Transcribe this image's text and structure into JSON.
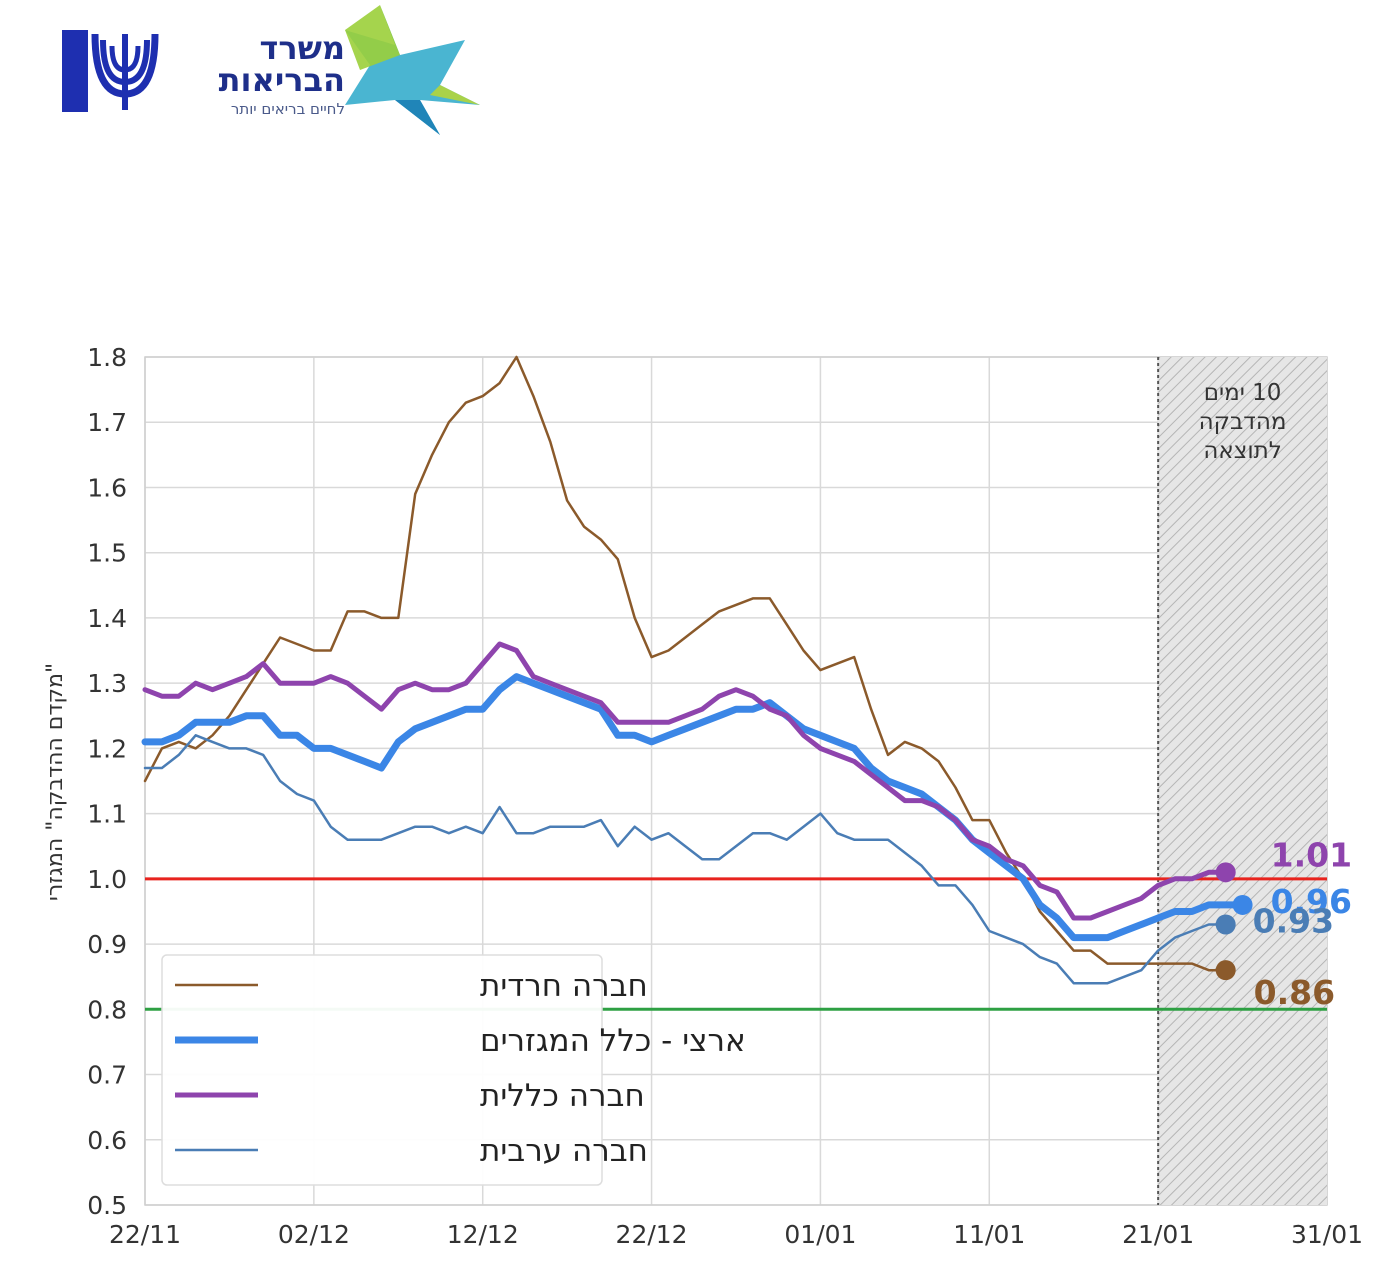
{
  "logo": {
    "ministry_name": "משרד הבריאות",
    "slogan": "לחיים בריאים יותר"
  },
  "chart_data": {
    "type": "line",
    "xlabel": "",
    "ylabel": "\"מקדם ההדבקה\" המגזרי",
    "ylim": [
      0.5,
      1.8
    ],
    "yticks": [
      "0.5",
      "0.6",
      "0.7",
      "0.8",
      "0.9",
      "1.0",
      "1.1",
      "1.2",
      "1.3",
      "1.4",
      "1.5",
      "1.6",
      "1.7",
      "1.8"
    ],
    "xticks": [
      "22/11",
      "02/12",
      "12/12",
      "22/12",
      "01/01",
      "11/01",
      "21/01",
      "31/01"
    ],
    "x_unit": "days from 22/11",
    "grid": true,
    "legend_position": "bottom-left",
    "reference_lines": [
      {
        "y": 1.0,
        "color": "#e8231e"
      },
      {
        "y": 0.8,
        "color": "#2ea043"
      }
    ],
    "shaded_region": {
      "from": "21/01",
      "to": "31/01",
      "annotation": "10 ימים\nמהדבקה\nלתוצאה"
    },
    "series": [
      {
        "name": "חברה חרדית",
        "color": "#8b5a2b",
        "width": 2.5,
        "end_label": "0.86",
        "points": [
          [
            0,
            1.15
          ],
          [
            1,
            1.2
          ],
          [
            2,
            1.21
          ],
          [
            3,
            1.2
          ],
          [
            4,
            1.22
          ],
          [
            5,
            1.25
          ],
          [
            6,
            1.29
          ],
          [
            7,
            1.33
          ],
          [
            8,
            1.37
          ],
          [
            9,
            1.36
          ],
          [
            10,
            1.35
          ],
          [
            11,
            1.35
          ],
          [
            12,
            1.41
          ],
          [
            13,
            1.41
          ],
          [
            14,
            1.4
          ],
          [
            15,
            1.4
          ],
          [
            16,
            1.59
          ],
          [
            17,
            1.65
          ],
          [
            18,
            1.7
          ],
          [
            19,
            1.73
          ],
          [
            20,
            1.74
          ],
          [
            21,
            1.76
          ],
          [
            22,
            1.8
          ],
          [
            23,
            1.74
          ],
          [
            24,
            1.67
          ],
          [
            25,
            1.58
          ],
          [
            26,
            1.54
          ],
          [
            27,
            1.52
          ],
          [
            28,
            1.49
          ],
          [
            29,
            1.4
          ],
          [
            30,
            1.34
          ],
          [
            31,
            1.35
          ],
          [
            32,
            1.37
          ],
          [
            33,
            1.39
          ],
          [
            34,
            1.41
          ],
          [
            35,
            1.42
          ],
          [
            36,
            1.43
          ],
          [
            37,
            1.43
          ],
          [
            38,
            1.39
          ],
          [
            39,
            1.35
          ],
          [
            40,
            1.32
          ],
          [
            41,
            1.33
          ],
          [
            42,
            1.34
          ],
          [
            43,
            1.26
          ],
          [
            44,
            1.19
          ],
          [
            45,
            1.21
          ],
          [
            46,
            1.2
          ],
          [
            47,
            1.18
          ],
          [
            48,
            1.14
          ],
          [
            49,
            1.09
          ],
          [
            50,
            1.09
          ],
          [
            51,
            1.04
          ],
          [
            52,
            1.0
          ],
          [
            53,
            0.95
          ],
          [
            54,
            0.92
          ],
          [
            55,
            0.89
          ],
          [
            56,
            0.89
          ],
          [
            57,
            0.87
          ],
          [
            58,
            0.87
          ],
          [
            59,
            0.87
          ],
          [
            60,
            0.87
          ],
          [
            61,
            0.87
          ],
          [
            62,
            0.87
          ],
          [
            63,
            0.86
          ],
          [
            64,
            0.86
          ]
        ]
      },
      {
        "name": "ארצי - כלל המגזרים",
        "color": "#3b86e6",
        "width": 7,
        "end_label": "0.96",
        "points": [
          [
            0,
            1.21
          ],
          [
            1,
            1.21
          ],
          [
            2,
            1.22
          ],
          [
            3,
            1.24
          ],
          [
            4,
            1.24
          ],
          [
            5,
            1.24
          ],
          [
            6,
            1.25
          ],
          [
            7,
            1.25
          ],
          [
            8,
            1.22
          ],
          [
            9,
            1.22
          ],
          [
            10,
            1.2
          ],
          [
            11,
            1.2
          ],
          [
            12,
            1.19
          ],
          [
            13,
            1.18
          ],
          [
            14,
            1.17
          ],
          [
            15,
            1.21
          ],
          [
            16,
            1.23
          ],
          [
            17,
            1.24
          ],
          [
            18,
            1.25
          ],
          [
            19,
            1.26
          ],
          [
            20,
            1.26
          ],
          [
            21,
            1.29
          ],
          [
            22,
            1.31
          ],
          [
            23,
            1.3
          ],
          [
            24,
            1.29
          ],
          [
            25,
            1.28
          ],
          [
            26,
            1.27
          ],
          [
            27,
            1.26
          ],
          [
            28,
            1.22
          ],
          [
            29,
            1.22
          ],
          [
            30,
            1.21
          ],
          [
            31,
            1.22
          ],
          [
            32,
            1.23
          ],
          [
            33,
            1.24
          ],
          [
            34,
            1.25
          ],
          [
            35,
            1.26
          ],
          [
            36,
            1.26
          ],
          [
            37,
            1.27
          ],
          [
            38,
            1.25
          ],
          [
            39,
            1.23
          ],
          [
            40,
            1.22
          ],
          [
            41,
            1.21
          ],
          [
            42,
            1.2
          ],
          [
            43,
            1.17
          ],
          [
            44,
            1.15
          ],
          [
            45,
            1.14
          ],
          [
            46,
            1.13
          ],
          [
            47,
            1.11
          ],
          [
            48,
            1.09
          ],
          [
            49,
            1.06
          ],
          [
            50,
            1.04
          ],
          [
            51,
            1.02
          ],
          [
            52,
            1.0
          ],
          [
            53,
            0.96
          ],
          [
            54,
            0.94
          ],
          [
            55,
            0.91
          ],
          [
            56,
            0.91
          ],
          [
            57,
            0.91
          ],
          [
            58,
            0.92
          ],
          [
            59,
            0.93
          ],
          [
            60,
            0.94
          ],
          [
            61,
            0.95
          ],
          [
            62,
            0.95
          ],
          [
            63,
            0.96
          ],
          [
            64,
            0.96
          ],
          [
            65,
            0.96
          ]
        ]
      },
      {
        "name": "חברה כללית",
        "color": "#8e44ad",
        "width": 5,
        "end_label": "1.01",
        "points": [
          [
            0,
            1.29
          ],
          [
            1,
            1.28
          ],
          [
            2,
            1.28
          ],
          [
            3,
            1.3
          ],
          [
            4,
            1.29
          ],
          [
            5,
            1.3
          ],
          [
            6,
            1.31
          ],
          [
            7,
            1.33
          ],
          [
            8,
            1.3
          ],
          [
            9,
            1.3
          ],
          [
            10,
            1.3
          ],
          [
            11,
            1.31
          ],
          [
            12,
            1.3
          ],
          [
            13,
            1.28
          ],
          [
            14,
            1.26
          ],
          [
            15,
            1.29
          ],
          [
            16,
            1.3
          ],
          [
            17,
            1.29
          ],
          [
            18,
            1.29
          ],
          [
            19,
            1.3
          ],
          [
            20,
            1.33
          ],
          [
            21,
            1.36
          ],
          [
            22,
            1.35
          ],
          [
            23,
            1.31
          ],
          [
            24,
            1.3
          ],
          [
            25,
            1.29
          ],
          [
            26,
            1.28
          ],
          [
            27,
            1.27
          ],
          [
            28,
            1.24
          ],
          [
            29,
            1.24
          ],
          [
            30,
            1.24
          ],
          [
            31,
            1.24
          ],
          [
            32,
            1.25
          ],
          [
            33,
            1.26
          ],
          [
            34,
            1.28
          ],
          [
            35,
            1.29
          ],
          [
            36,
            1.28
          ],
          [
            37,
            1.26
          ],
          [
            38,
            1.25
          ],
          [
            39,
            1.22
          ],
          [
            40,
            1.2
          ],
          [
            41,
            1.19
          ],
          [
            42,
            1.18
          ],
          [
            43,
            1.16
          ],
          [
            44,
            1.14
          ],
          [
            45,
            1.12
          ],
          [
            46,
            1.12
          ],
          [
            47,
            1.11
          ],
          [
            48,
            1.09
          ],
          [
            49,
            1.06
          ],
          [
            50,
            1.05
          ],
          [
            51,
            1.03
          ],
          [
            52,
            1.02
          ],
          [
            53,
            0.99
          ],
          [
            54,
            0.98
          ],
          [
            55,
            0.94
          ],
          [
            56,
            0.94
          ],
          [
            57,
            0.95
          ],
          [
            58,
            0.96
          ],
          [
            59,
            0.97
          ],
          [
            60,
            0.99
          ],
          [
            61,
            1.0
          ],
          [
            62,
            1.0
          ],
          [
            63,
            1.01
          ],
          [
            64,
            1.01
          ]
        ]
      },
      {
        "name": "חברה ערבית",
        "color": "#4a7db5",
        "width": 2.5,
        "end_label": "0.93",
        "points": [
          [
            0,
            1.17
          ],
          [
            1,
            1.17
          ],
          [
            2,
            1.19
          ],
          [
            3,
            1.22
          ],
          [
            4,
            1.21
          ],
          [
            5,
            1.2
          ],
          [
            6,
            1.2
          ],
          [
            7,
            1.19
          ],
          [
            8,
            1.15
          ],
          [
            9,
            1.13
          ],
          [
            10,
            1.12
          ],
          [
            11,
            1.08
          ],
          [
            12,
            1.06
          ],
          [
            13,
            1.06
          ],
          [
            14,
            1.06
          ],
          [
            15,
            1.07
          ],
          [
            16,
            1.08
          ],
          [
            17,
            1.08
          ],
          [
            18,
            1.07
          ],
          [
            19,
            1.08
          ],
          [
            20,
            1.07
          ],
          [
            21,
            1.11
          ],
          [
            22,
            1.07
          ],
          [
            23,
            1.07
          ],
          [
            24,
            1.08
          ],
          [
            25,
            1.08
          ],
          [
            26,
            1.08
          ],
          [
            27,
            1.09
          ],
          [
            28,
            1.05
          ],
          [
            29,
            1.08
          ],
          [
            30,
            1.06
          ],
          [
            31,
            1.07
          ],
          [
            32,
            1.05
          ],
          [
            33,
            1.03
          ],
          [
            34,
            1.03
          ],
          [
            35,
            1.05
          ],
          [
            36,
            1.07
          ],
          [
            37,
            1.07
          ],
          [
            38,
            1.06
          ],
          [
            39,
            1.08
          ],
          [
            40,
            1.1
          ],
          [
            41,
            1.07
          ],
          [
            42,
            1.06
          ],
          [
            43,
            1.06
          ],
          [
            44,
            1.06
          ],
          [
            45,
            1.04
          ],
          [
            46,
            1.02
          ],
          [
            47,
            0.99
          ],
          [
            48,
            0.99
          ],
          [
            49,
            0.96
          ],
          [
            50,
            0.92
          ],
          [
            51,
            0.91
          ],
          [
            52,
            0.9
          ],
          [
            53,
            0.88
          ],
          [
            54,
            0.87
          ],
          [
            55,
            0.84
          ],
          [
            56,
            0.84
          ],
          [
            57,
            0.84
          ],
          [
            58,
            0.85
          ],
          [
            59,
            0.86
          ],
          [
            60,
            0.89
          ],
          [
            61,
            0.91
          ],
          [
            62,
            0.92
          ],
          [
            63,
            0.93
          ],
          [
            64,
            0.93
          ]
        ]
      }
    ]
  }
}
